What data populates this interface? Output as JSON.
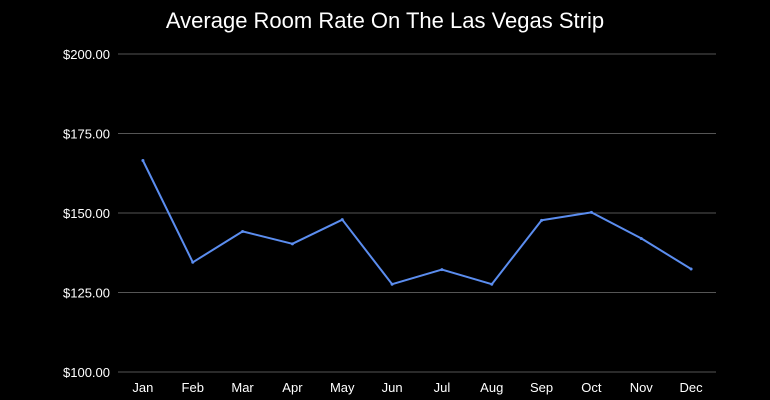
{
  "chart_data": {
    "type": "line",
    "title": "Average Room Rate On The Las Vegas Strip",
    "xlabel": "",
    "ylabel": "",
    "categories": [
      "Jan",
      "Feb",
      "Mar",
      "Apr",
      "May",
      "Jun",
      "Jul",
      "Aug",
      "Sep",
      "Oct",
      "Nov",
      "Dec"
    ],
    "series": [
      {
        "values": [
          166.5,
          134.5,
          144.2,
          140.3,
          147.9,
          127.6,
          132.2,
          127.6,
          147.7,
          150.2,
          142.0,
          132.4
        ]
      }
    ],
    "ylim": [
      100,
      200
    ],
    "yticks": [
      100,
      125,
      150,
      175,
      200
    ],
    "ytick_labels": [
      "$100.00",
      "$125.00",
      "$150.00",
      "$175.00",
      "$200.00"
    ],
    "grid": true,
    "legend": "none",
    "colors": {
      "background": "#000000",
      "line": "#5b8def",
      "grid": "#555555",
      "text": "#ffffff"
    }
  }
}
